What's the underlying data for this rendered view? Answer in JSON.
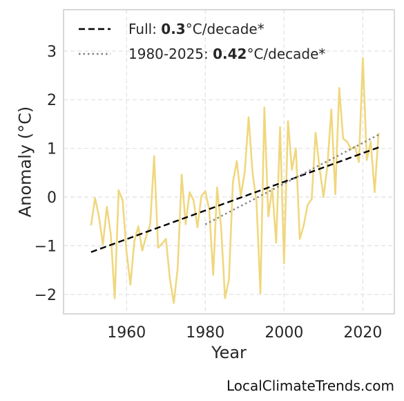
{
  "chart_data": {
    "type": "line",
    "title": "",
    "xlabel": "Year",
    "ylabel": "Anomaly (°C)",
    "xlim": [
      1944,
      2028
    ],
    "ylim": [
      -2.4,
      3.85
    ],
    "x_ticks": [
      1960,
      1980,
      2000,
      2020
    ],
    "y_ticks": [
      3,
      2,
      1,
      0,
      -1,
      -2
    ],
    "y_tick_labels": [
      "3",
      "2",
      "1",
      "0",
      "−1",
      "−2"
    ],
    "grid": true,
    "legend_position": "top-left",
    "series": [
      {
        "name": "",
        "color": "#f0d77e",
        "style": "solid",
        "x": [
          1951,
          1952,
          1953,
          1954,
          1955,
          1956,
          1957,
          1958,
          1959,
          1960,
          1961,
          1962,
          1963,
          1964,
          1965,
          1966,
          1967,
          1968,
          1969,
          1970,
          1971,
          1972,
          1973,
          1974,
          1975,
          1976,
          1977,
          1978,
          1979,
          1980,
          1981,
          1982,
          1983,
          1984,
          1985,
          1986,
          1987,
          1988,
          1989,
          1990,
          1991,
          1992,
          1993,
          1994,
          1995,
          1996,
          1997,
          1998,
          1999,
          2000,
          2001,
          2002,
          2003,
          2004,
          2005,
          2006,
          2007,
          2008,
          2009,
          2010,
          2011,
          2012,
          2013,
          2014,
          2015,
          2016,
          2017,
          2018,
          2019,
          2020,
          2021,
          2022,
          2023,
          2024
        ],
        "y": [
          -0.58,
          -0.02,
          -0.4,
          -0.98,
          -0.2,
          -0.76,
          -2.08,
          0.14,
          -0.06,
          -1.12,
          -1.8,
          -0.9,
          -0.6,
          -1.1,
          -0.8,
          -0.56,
          0.84,
          -1.04,
          -0.96,
          -0.86,
          -1.68,
          -2.18,
          -1.44,
          0.46,
          -0.56,
          0.1,
          -0.06,
          -0.62,
          0.02,
          0.12,
          -0.26,
          -1.6,
          0.2,
          -0.6,
          -2.08,
          -1.7,
          0.3,
          0.74,
          0.02,
          0.5,
          1.64,
          0.5,
          -0.1,
          -1.98,
          1.84,
          -0.4,
          0.18,
          -0.94,
          1.44,
          -1.36,
          1.56,
          0.56,
          1.0,
          -0.86,
          -0.58,
          -0.16,
          -0.04,
          1.32,
          0.6,
          0.0,
          0.64,
          1.8,
          0.06,
          2.24,
          1.2,
          1.14,
          0.98,
          1.04,
          0.72,
          2.86,
          0.76,
          1.14,
          0.1,
          1.32
        ]
      },
      {
        "name": "Full",
        "color": "#000000",
        "style": "dashed",
        "x": [
          1951,
          2024
        ],
        "y": [
          -1.13,
          1.02
        ]
      },
      {
        "name": "1980-2025",
        "color": "#808080",
        "style": "dotted",
        "x": [
          1980,
          2024
        ],
        "y": [
          -0.56,
          1.28
        ]
      }
    ],
    "legend": [
      {
        "prefix": "Full: ",
        "value": "0.3",
        "suffix": "°C/decade*"
      },
      {
        "prefix": "1980-2025: ",
        "value": "0.42",
        "suffix": "°C/decade*"
      }
    ]
  },
  "credit": "LocalClimateTrends.com"
}
